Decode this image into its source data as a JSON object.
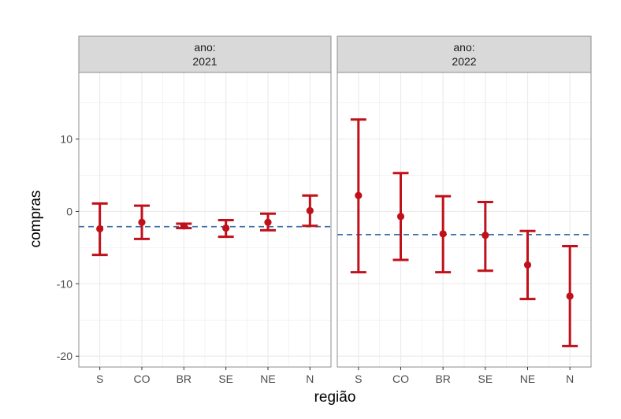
{
  "chart_data": {
    "type": "errorbar",
    "xlabel": "região",
    "ylabel": "compras",
    "categories": [
      "S",
      "CO",
      "BR",
      "SE",
      "NE",
      "N"
    ],
    "ylim": [
      -21.5,
      19.2
    ],
    "yticks": [
      -20,
      -10,
      0,
      10
    ],
    "ytick_labels": [
      "-20",
      "-10",
      "0",
      "10"
    ],
    "grid": true,
    "colors": {
      "points": "#c0111a",
      "reference_line": "#3a6ea5",
      "strip_fill": "#d9d9d9",
      "grid": "#ebebeb",
      "panel_border": "#8c8c8c"
    },
    "panels": [
      {
        "strip_line1": "ano:",
        "strip_line2": "2021",
        "reference_y": -2.1,
        "points": [
          {
            "category": "S",
            "y": -2.4,
            "ymin": -6.0,
            "ymax": 1.1
          },
          {
            "category": "CO",
            "y": -1.5,
            "ymin": -3.8,
            "ymax": 0.8
          },
          {
            "category": "BR",
            "y": -2.0,
            "ymin": -2.3,
            "ymax": -1.7
          },
          {
            "category": "SE",
            "y": -2.3,
            "ymin": -3.5,
            "ymax": -1.2
          },
          {
            "category": "NE",
            "y": -1.5,
            "ymin": -2.6,
            "ymax": -0.3
          },
          {
            "category": "N",
            "y": 0.1,
            "ymin": -2.0,
            "ymax": 2.2
          }
        ]
      },
      {
        "strip_line1": "ano:",
        "strip_line2": "2022",
        "reference_y": -3.2,
        "points": [
          {
            "category": "S",
            "y": 2.2,
            "ymin": -8.4,
            "ymax": 12.7
          },
          {
            "category": "CO",
            "y": -0.7,
            "ymin": -6.7,
            "ymax": 5.3
          },
          {
            "category": "BR",
            "y": -3.1,
            "ymin": -8.4,
            "ymax": 2.1
          },
          {
            "category": "SE",
            "y": -3.3,
            "ymin": -8.2,
            "ymax": 1.3
          },
          {
            "category": "NE",
            "y": -7.4,
            "ymin": -12.1,
            "ymax": -2.7
          },
          {
            "category": "N",
            "y": -11.7,
            "ymin": -18.6,
            "ymax": -4.8
          }
        ]
      }
    ]
  }
}
